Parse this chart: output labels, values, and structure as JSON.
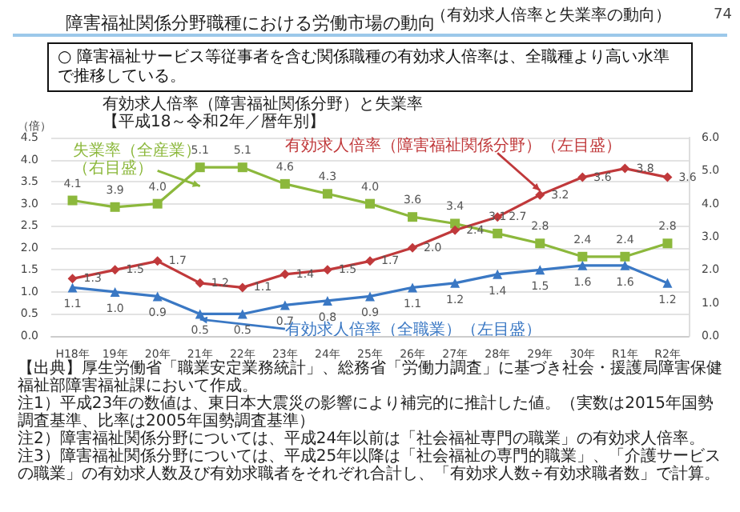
{
  "chart_data": {
    "type": "line",
    "title": "障害福祉関係分野職種における労働市場の動向",
    "subtitle": "（有効求人倍率と失業率の動向）",
    "annotations": [
      "○ 障害福祉サービス等従事者を含む関係職種の有効求人倍率は、全職種より高い水準で推移している。",
      "有効求人倍率（障害福祉関係分野）と失業率【平成18～令和2年／暦年別】",
      "【出典】厚生労働省「職業安定業務統計」、総務省「労働力調査」に基づき社会・援護局障害保健福祉部障害福祉課において作成。",
      "注1）平成23年の数値は、東日本大震災の影響により補完的に推計した値。（実数は2015年国勢調査基準、比率は2005年国勢調査基準）",
      "注2）障害福祉関係分野については、平成24年以前は「社会福祉専門の職業」の有効求人倍率。",
      "注3）障害福祉関係分野については、平成25年以降は「社会福祉の専門的職業」、「介護サービスの職業」の有効求人数及び有効求職者をそれぞれ合計し、「有効求人数÷有効求職者数」で計算。",
      "74"
    ],
    "ylabel": "（倍）",
    "categories": [
      "H18年",
      "19年",
      "20年",
      "21年",
      "22年",
      "23年",
      "24年",
      "25年",
      "26年",
      "27年",
      "28年",
      "29年",
      "30年",
      "R1年",
      "R2年"
    ],
    "series": [
      {
        "name": "失業率（全産業）（右目盛）",
        "color": "#8cb83c",
        "marker": "square",
        "axis": "y2",
        "values": [
          4.1,
          3.9,
          4.0,
          5.1,
          5.1,
          4.6,
          4.3,
          4.0,
          3.6,
          3.4,
          3.1,
          2.8,
          2.4,
          2.4,
          2.8
        ],
        "value_labels": [
          "4.1",
          "3.9",
          "4.0",
          "5.1",
          "5.1",
          "4.6",
          "4.3",
          "4.0",
          "3.6",
          "3.4",
          "3.1",
          "2.8",
          "2.4",
          "2.4",
          "2.8"
        ]
      },
      {
        "name": "有効求人倍率（障害福祉関係分野）（左目盛）",
        "color": "#c0393b",
        "marker": "diamond",
        "values": [
          1.3,
          1.5,
          1.7,
          1.2,
          1.1,
          1.4,
          1.5,
          1.7,
          2.0,
          2.4,
          2.7,
          3.2,
          3.6,
          3.8,
          3.6
        ],
        "value_labels": [
          "1.3",
          "1.5",
          "1.7",
          "1.2",
          "1.1",
          "1.4",
          "1.5",
          "1.7",
          "2.0",
          "2.4",
          "2.7",
          "3.2",
          "3.6",
          "3.8",
          "3.6"
        ]
      },
      {
        "name": "有効求人倍率（全職業）（左目盛）",
        "color": "#3a78c4",
        "marker": "triangle",
        "values": [
          1.1,
          1.0,
          0.9,
          0.5,
          0.5,
          0.7,
          0.8,
          0.9,
          1.1,
          1.2,
          1.4,
          1.5,
          1.6,
          1.6,
          1.2
        ],
        "value_labels": [
          "1.1",
          "1.0",
          "0.9",
          "0.5",
          "0.5",
          "0.7",
          "0.8",
          "0.9",
          "1.1",
          "1.2",
          "1.4",
          "1.5",
          "1.6",
          "1.6",
          "1.2"
        ]
      }
    ],
    "ylim": [
      0,
      4.5
    ],
    "yticks": [
      {
        "value": 0,
        "label": "0.0"
      },
      {
        "value": 0.5,
        "label": "0.5"
      },
      {
        "value": 1,
        "label": "1.0"
      },
      {
        "value": 1.5,
        "label": "1.5"
      },
      {
        "value": 2,
        "label": "2.0"
      },
      {
        "value": 2.5,
        "label": "2.5"
      },
      {
        "value": 3,
        "label": "3.0"
      },
      {
        "value": 3.5,
        "label": "3.5"
      },
      {
        "value": 4,
        "label": "4.0"
      },
      {
        "value": 4.5,
        "label": "4.5"
      }
    ],
    "y2lim": [
      0,
      6
    ],
    "y2ticks": [
      {
        "value": 0,
        "label": "0.0"
      },
      {
        "value": 1,
        "label": "1.0"
      },
      {
        "value": 2,
        "label": "2.0"
      },
      {
        "value": 3,
        "label": "3.0"
      },
      {
        "value": 4,
        "label": "4.0"
      },
      {
        "value": 5,
        "label": "5.0"
      },
      {
        "value": 6,
        "label": "6.0"
      }
    ],
    "grid": "y",
    "legend": false
  }
}
